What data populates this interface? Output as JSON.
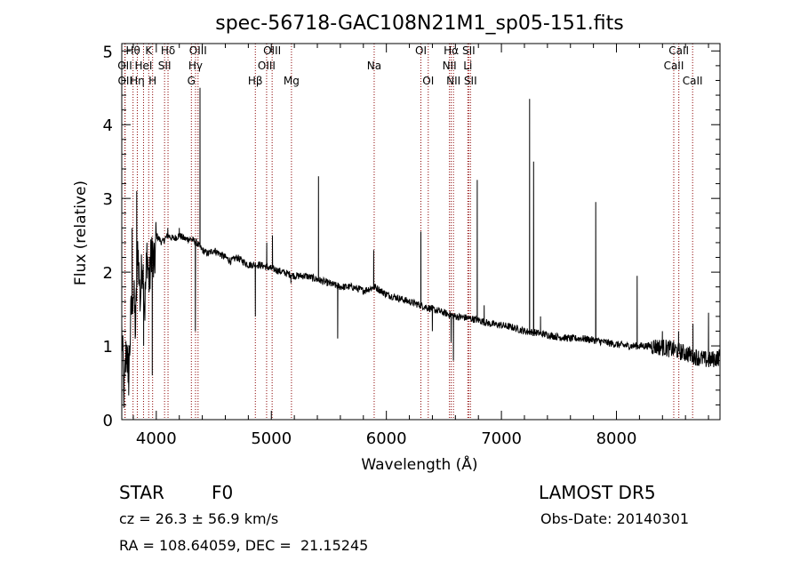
{
  "chart_data": {
    "type": "line",
    "title": "spec-56718-GAC108N21M1_sp05-151.fits",
    "xlabel": "Wavelength (Å)",
    "ylabel": "Flux (relative)",
    "xlim": [
      3700,
      8900
    ],
    "ylim": [
      0,
      5.1
    ],
    "xticks": [
      4000,
      5000,
      6000,
      7000,
      8000
    ],
    "yticks": [
      0,
      1,
      2,
      3,
      4,
      5
    ],
    "grid": false,
    "line_color": "#000000",
    "marker_color": "#8b0000",
    "continuum": [
      [
        3700,
        1.2
      ],
      [
        3720,
        0.3
      ],
      [
        3740,
        1.0
      ],
      [
        3760,
        0.6
      ],
      [
        3780,
        1.4
      ],
      [
        3800,
        1.8
      ],
      [
        3820,
        1.2
      ],
      [
        3840,
        2.4
      ],
      [
        3860,
        1.6
      ],
      [
        3880,
        2.2
      ],
      [
        3900,
        1.5
      ],
      [
        3920,
        2.3
      ],
      [
        3940,
        1.8
      ],
      [
        3960,
        2.4
      ],
      [
        3980,
        2.0
      ],
      [
        4000,
        2.5
      ],
      [
        4050,
        2.4
      ],
      [
        4100,
        2.5
      ],
      [
        4150,
        2.45
      ],
      [
        4200,
        2.5
      ],
      [
        4250,
        2.45
      ],
      [
        4300,
        2.45
      ],
      [
        4350,
        2.4
      ],
      [
        4400,
        2.3
      ],
      [
        4450,
        2.25
      ],
      [
        4500,
        2.3
      ],
      [
        4550,
        2.25
      ],
      [
        4600,
        2.2
      ],
      [
        4650,
        2.15
      ],
      [
        4700,
        2.2
      ],
      [
        4750,
        2.15
      ],
      [
        4800,
        2.1
      ],
      [
        4900,
        2.1
      ],
      [
        5000,
        2.05
      ],
      [
        5100,
        2.0
      ],
      [
        5200,
        1.95
      ],
      [
        5300,
        1.95
      ],
      [
        5400,
        1.9
      ],
      [
        5500,
        1.85
      ],
      [
        5600,
        1.8
      ],
      [
        5700,
        1.8
      ],
      [
        5800,
        1.75
      ],
      [
        5900,
        1.8
      ],
      [
        6000,
        1.7
      ],
      [
        6100,
        1.65
      ],
      [
        6200,
        1.6
      ],
      [
        6300,
        1.55
      ],
      [
        6400,
        1.5
      ],
      [
        6500,
        1.45
      ],
      [
        6600,
        1.4
      ],
      [
        6700,
        1.38
      ],
      [
        6800,
        1.35
      ],
      [
        6900,
        1.3
      ],
      [
        7000,
        1.28
      ],
      [
        7100,
        1.25
      ],
      [
        7200,
        1.2
      ],
      [
        7300,
        1.18
      ],
      [
        7400,
        1.15
      ],
      [
        7500,
        1.12
      ],
      [
        7600,
        1.1
      ],
      [
        7700,
        1.1
      ],
      [
        7800,
        1.08
      ],
      [
        7900,
        1.05
      ],
      [
        8000,
        1.02
      ],
      [
        8100,
        1.0
      ],
      [
        8200,
        1.0
      ],
      [
        8300,
        1.0
      ],
      [
        8400,
        0.98
      ],
      [
        8500,
        0.95
      ],
      [
        8600,
        0.9
      ],
      [
        8700,
        0.85
      ],
      [
        8800,
        0.8
      ],
      [
        8900,
        0.85
      ]
    ],
    "features": [
      [
        3755,
        0.5
      ],
      [
        3790,
        2.6
      ],
      [
        3830,
        3.1
      ],
      [
        3890,
        1.0
      ],
      [
        3965,
        0.6
      ],
      [
        4100,
        2.6
      ],
      [
        4200,
        2.6
      ],
      [
        4340,
        1.2
      ],
      [
        4380,
        4.5
      ],
      [
        4861,
        1.4
      ],
      [
        4960,
        2.4
      ],
      [
        5010,
        2.5
      ],
      [
        5170,
        1.85
      ],
      [
        5410,
        3.3
      ],
      [
        5577,
        1.1
      ],
      [
        5890,
        2.3
      ],
      [
        6300,
        2.55
      ],
      [
        6400,
        1.2
      ],
      [
        6563,
        1.05
      ],
      [
        6583,
        0.8
      ],
      [
        6790,
        3.25
      ],
      [
        6850,
        1.55
      ],
      [
        7245,
        4.35
      ],
      [
        7280,
        3.5
      ],
      [
        7340,
        1.4
      ],
      [
        7820,
        2.95
      ],
      [
        8180,
        1.95
      ],
      [
        8399,
        1.2
      ],
      [
        8540,
        1.2
      ],
      [
        8665,
        1.3
      ],
      [
        8800,
        1.45
      ]
    ],
    "spectral_lines": [
      {
        "label": "OII",
        "x": 3727,
        "row": 2
      },
      {
        "label": "OII",
        "x": 3729,
        "row": 3
      },
      {
        "label": "Hθ",
        "x": 3798,
        "row": 1
      },
      {
        "label": "Hη",
        "x": 3835,
        "row": 3
      },
      {
        "label": "HeI",
        "x": 3889,
        "row": 2
      },
      {
        "label": "K",
        "x": 3934,
        "row": 1
      },
      {
        "label": "H",
        "x": 3968,
        "row": 3
      },
      {
        "label": "SII",
        "x": 4072,
        "row": 2
      },
      {
        "label": "Hδ",
        "x": 4102,
        "row": 1
      },
      {
        "label": "G",
        "x": 4305,
        "row": 3
      },
      {
        "label": "Hγ",
        "x": 4341,
        "row": 2
      },
      {
        "label": "OIII",
        "x": 4363,
        "row": 1
      },
      {
        "label": "Hβ",
        "x": 4861,
        "row": 3
      },
      {
        "label": "OIII",
        "x": 4959,
        "row": 2
      },
      {
        "label": "OIII",
        "x": 5007,
        "row": 1
      },
      {
        "label": "Mg",
        "x": 5175,
        "row": 3
      },
      {
        "label": "Na",
        "x": 5894,
        "row": 2
      },
      {
        "label": "OI",
        "x": 6300,
        "row": 1
      },
      {
        "label": "OI",
        "x": 6364,
        "row": 3
      },
      {
        "label": "NII",
        "x": 6548,
        "row": 2
      },
      {
        "label": "Hα",
        "x": 6563,
        "row": 1
      },
      {
        "label": "NII",
        "x": 6583,
        "row": 3
      },
      {
        "label": "Li",
        "x": 6708,
        "row": 2
      },
      {
        "label": "SII",
        "x": 6716,
        "row": 1
      },
      {
        "label": "SII",
        "x": 6731,
        "row": 3
      },
      {
        "label": "CaII",
        "x": 8498,
        "row": 2
      },
      {
        "label": "CaII",
        "x": 8542,
        "row": 1
      },
      {
        "label": "CaII",
        "x": 8662,
        "row": 3
      }
    ]
  },
  "info": {
    "object_class": "STAR",
    "subclass": "F0",
    "survey": "LAMOST DR5",
    "cz": "cz = 26.3 ± 56.9 km/s",
    "obs_date": "Obs-Date: 20140301",
    "coords": "RA = 108.64059, DEC =  21.15245"
  }
}
